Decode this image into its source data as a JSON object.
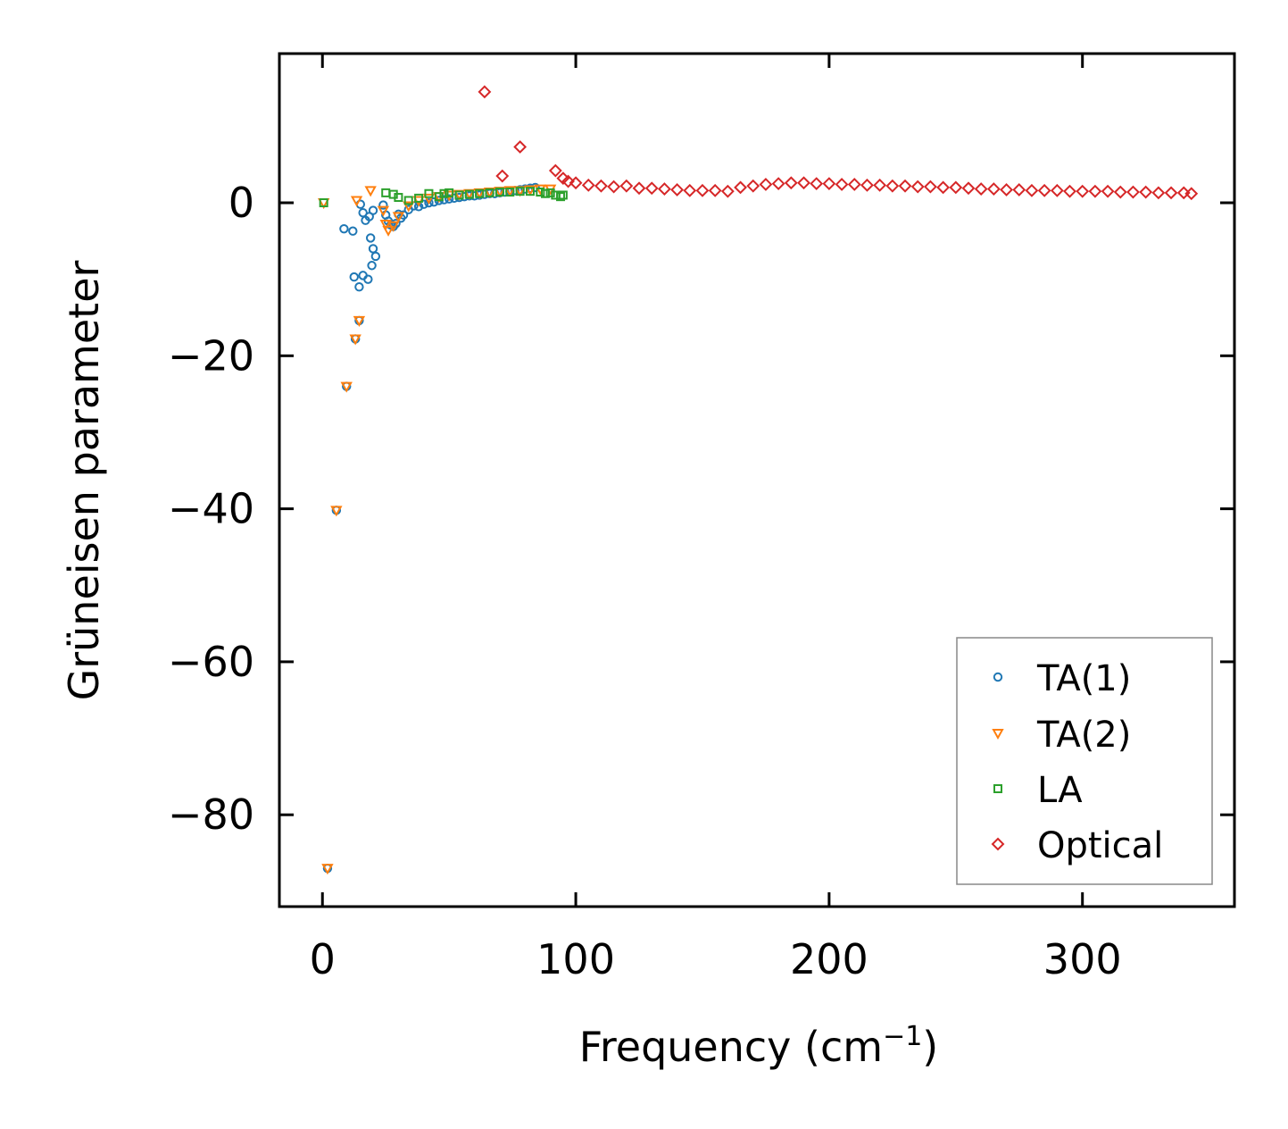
{
  "chart_data": {
    "type": "scatter",
    "title": "",
    "xlabel": "Frequency (cm",
    "xlabel_sup": "−1",
    "xlabel_close": ")",
    "ylabel": "Grüneisen parameter",
    "xlim": [
      -17,
      360
    ],
    "ylim": [
      -92,
      19.5
    ],
    "xticks": [
      0,
      100,
      200,
      300
    ],
    "xtick_labels": [
      "0",
      "100",
      "200",
      "300"
    ],
    "yticks": [
      0,
      -20,
      -40,
      -60,
      -80
    ],
    "ytick_labels": [
      "0",
      "−20",
      "−40",
      "−60",
      "−80"
    ],
    "grid": false,
    "legend_position": "lower-right",
    "series": [
      {
        "name": "TA(1)",
        "marker": "circle",
        "color": "#1f77b4",
        "points": [
          [
            2,
            -87
          ],
          [
            5.5,
            -40.2
          ],
          [
            9.5,
            -24
          ],
          [
            13,
            -17.8
          ],
          [
            14.5,
            -15.4
          ],
          [
            8.5,
            -3.4
          ],
          [
            12,
            -3.7
          ],
          [
            12.5,
            -9.7
          ],
          [
            14.5,
            -11
          ],
          [
            16,
            -9.5
          ],
          [
            18,
            -10
          ],
          [
            19.5,
            -8.2
          ],
          [
            20,
            -6
          ],
          [
            21,
            -7
          ],
          [
            19,
            -4.6
          ],
          [
            15,
            -0.2
          ],
          [
            16,
            -1.3
          ],
          [
            17,
            -2.3
          ],
          [
            18.5,
            -1.8
          ],
          [
            20,
            -1
          ],
          [
            24,
            -0.3
          ],
          [
            25,
            -1.6
          ],
          [
            26,
            -2.4
          ],
          [
            27,
            -2.9
          ],
          [
            28,
            -3.1
          ],
          [
            29,
            -2.7
          ],
          [
            30,
            -1.5
          ],
          [
            31,
            -2
          ],
          [
            32,
            -1.6
          ],
          [
            34,
            -0.9
          ],
          [
            36,
            -0.4
          ],
          [
            38,
            -0.5
          ],
          [
            40,
            -0.2
          ],
          [
            42,
            0
          ],
          [
            44,
            0.1
          ],
          [
            46,
            0.3
          ],
          [
            48,
            0.4
          ],
          [
            50,
            0.5
          ],
          [
            52,
            0.6
          ],
          [
            54,
            0.7
          ],
          [
            56,
            0.8
          ],
          [
            58,
            0.9
          ],
          [
            60,
            0.9
          ],
          [
            62,
            1
          ],
          [
            64,
            1.1
          ],
          [
            66,
            1.2
          ],
          [
            68,
            1.2
          ],
          [
            70,
            1.3
          ],
          [
            72,
            1.4
          ],
          [
            74,
            1.5
          ],
          [
            76,
            1.6
          ],
          [
            78,
            1.7
          ],
          [
            80,
            1.8
          ],
          [
            82,
            1.9
          ],
          [
            84,
            2
          ]
        ]
      },
      {
        "name": "TA(2)",
        "marker": "triangle-down",
        "color": "#ff7f0e",
        "points": [
          [
            2,
            -87
          ],
          [
            5.5,
            -40.2
          ],
          [
            9.5,
            -24
          ],
          [
            13,
            -17.8
          ],
          [
            14.5,
            -15.4
          ],
          [
            0.5,
            0
          ],
          [
            13.5,
            0.3
          ],
          [
            19,
            1.6
          ],
          [
            24,
            -1
          ],
          [
            25,
            -2.8
          ],
          [
            26,
            -3.6
          ],
          [
            28,
            -3
          ],
          [
            30,
            -1.8
          ],
          [
            34,
            -0.4
          ],
          [
            38,
            0.3
          ],
          [
            42,
            0.6
          ],
          [
            46,
            0.8
          ],
          [
            50,
            1
          ],
          [
            54,
            1.1
          ],
          [
            58,
            1.2
          ],
          [
            62,
            1.3
          ],
          [
            66,
            1.4
          ],
          [
            70,
            1.5
          ],
          [
            74,
            1.6
          ],
          [
            78,
            1.6
          ],
          [
            82,
            1.7
          ],
          [
            86,
            1.8
          ],
          [
            90,
            1.8
          ]
        ]
      },
      {
        "name": "LA",
        "marker": "square",
        "color": "#2ca02c",
        "points": [
          [
            0.5,
            0
          ],
          [
            25,
            1.3
          ],
          [
            28,
            1.1
          ],
          [
            30,
            0.7
          ],
          [
            34,
            0.3
          ],
          [
            38,
            0.6
          ],
          [
            42,
            1.2
          ],
          [
            46,
            0.8
          ],
          [
            48,
            1.2
          ],
          [
            50,
            1.3
          ],
          [
            54,
            1
          ],
          [
            58,
            1.1
          ],
          [
            62,
            1.2
          ],
          [
            66,
            1.3
          ],
          [
            70,
            1.4
          ],
          [
            74,
            1.4
          ],
          [
            78,
            1.5
          ],
          [
            82,
            1.5
          ],
          [
            86,
            1.4
          ],
          [
            88,
            1.2
          ],
          [
            90,
            1.3
          ],
          [
            92,
            1
          ],
          [
            94,
            0.8
          ],
          [
            95,
            1
          ]
        ]
      },
      {
        "name": "Optical",
        "marker": "diamond",
        "color": "#d62728",
        "points": [
          [
            64,
            14.5
          ],
          [
            78,
            7.3
          ],
          [
            71,
            3.5
          ],
          [
            92,
            4.2
          ],
          [
            95,
            3.2
          ],
          [
            97,
            2.8
          ],
          [
            100,
            2.6
          ],
          [
            105,
            2.3
          ],
          [
            110,
            2.2
          ],
          [
            115,
            2.1
          ],
          [
            120,
            2.2
          ],
          [
            125,
            1.9
          ],
          [
            130,
            1.9
          ],
          [
            135,
            1.8
          ],
          [
            140,
            1.7
          ],
          [
            145,
            1.6
          ],
          [
            150,
            1.6
          ],
          [
            155,
            1.6
          ],
          [
            160,
            1.5
          ],
          [
            165,
            2
          ],
          [
            170,
            2.2
          ],
          [
            175,
            2.4
          ],
          [
            180,
            2.5
          ],
          [
            185,
            2.6
          ],
          [
            190,
            2.6
          ],
          [
            195,
            2.5
          ],
          [
            200,
            2.5
          ],
          [
            205,
            2.4
          ],
          [
            210,
            2.4
          ],
          [
            215,
            2.3
          ],
          [
            220,
            2.3
          ],
          [
            225,
            2.2
          ],
          [
            230,
            2.2
          ],
          [
            235,
            2.1
          ],
          [
            240,
            2.1
          ],
          [
            245,
            2
          ],
          [
            250,
            2
          ],
          [
            255,
            1.9
          ],
          [
            260,
            1.8
          ],
          [
            265,
            1.8
          ],
          [
            270,
            1.7
          ],
          [
            275,
            1.7
          ],
          [
            280,
            1.6
          ],
          [
            285,
            1.6
          ],
          [
            290,
            1.6
          ],
          [
            295,
            1.5
          ],
          [
            300,
            1.5
          ],
          [
            305,
            1.5
          ],
          [
            310,
            1.5
          ],
          [
            315,
            1.4
          ],
          [
            320,
            1.4
          ],
          [
            325,
            1.4
          ],
          [
            330,
            1.3
          ],
          [
            335,
            1.3
          ],
          [
            340,
            1.3
          ],
          [
            343,
            1.2
          ]
        ]
      }
    ]
  }
}
